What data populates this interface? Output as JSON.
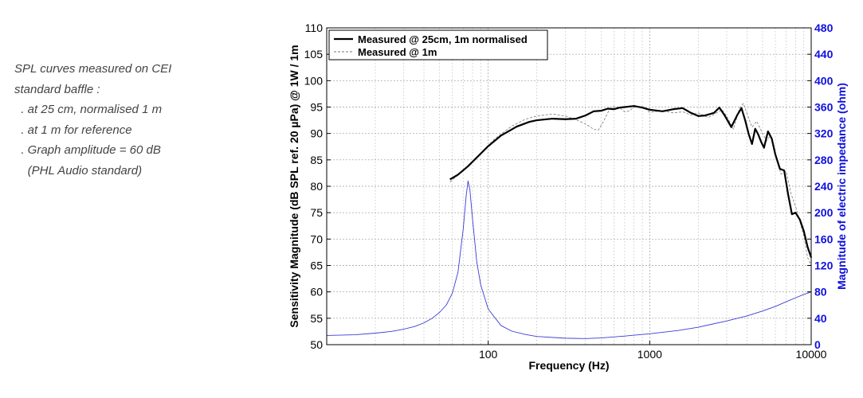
{
  "note": {
    "lines": [
      "SPL curves measured on CEI",
      "standard baffle :",
      "  . at 25 cm, normalised 1 m",
      "  . at 1 m for reference",
      "  . Graph amplitude = 60 dB",
      "    (PHL Audio standard)"
    ]
  },
  "chart_data": {
    "type": "line",
    "xlabel": "Frequency (Hz)",
    "ylabel": "Sensitivity Magnitude (dB SPL ref. 20 µPa) @ 1W / 1m",
    "ylabel_right": "Magnitude of electric impedance (ohm)",
    "xscale": "log",
    "xlim": [
      10,
      10000
    ],
    "ylim": [
      50,
      110
    ],
    "ylim_right": [
      0,
      480
    ],
    "x_tick_labels": [
      "100",
      "1000",
      "10000"
    ],
    "y_ticks": [
      50,
      55,
      60,
      65,
      70,
      75,
      80,
      85,
      90,
      95,
      100,
      105,
      110
    ],
    "y_ticks_right": [
      0,
      40,
      80,
      120,
      160,
      200,
      240,
      280,
      320,
      360,
      400,
      440,
      480
    ],
    "grid": true,
    "legend_position": "top-left",
    "colors": {
      "measured_25cm": "#000000",
      "measured_1m": "#777777",
      "impedance": "#3b3bd6",
      "right_axis": "#1010e0"
    },
    "series": [
      {
        "name": "Measured @ 25cm, 1m normalised",
        "axis": "left",
        "style": "solid",
        "points": [
          [
            58,
            81.3
          ],
          [
            65,
            82.2
          ],
          [
            75,
            83.8
          ],
          [
            90,
            86.2
          ],
          [
            100,
            87.6
          ],
          [
            120,
            89.6
          ],
          [
            150,
            91.3
          ],
          [
            180,
            92.2
          ],
          [
            200,
            92.5
          ],
          [
            250,
            92.8
          ],
          [
            300,
            92.7
          ],
          [
            350,
            92.8
          ],
          [
            400,
            93.4
          ],
          [
            450,
            94.2
          ],
          [
            500,
            94.3
          ],
          [
            550,
            94.7
          ],
          [
            600,
            94.6
          ],
          [
            650,
            94.9
          ],
          [
            700,
            95.0
          ],
          [
            800,
            95.2
          ],
          [
            900,
            94.9
          ],
          [
            1000,
            94.5
          ],
          [
            1200,
            94.2
          ],
          [
            1400,
            94.6
          ],
          [
            1600,
            94.8
          ],
          [
            1800,
            93.9
          ],
          [
            2000,
            93.3
          ],
          [
            2200,
            93.4
          ],
          [
            2500,
            93.9
          ],
          [
            2700,
            94.9
          ],
          [
            2900,
            93.5
          ],
          [
            3200,
            91.2
          ],
          [
            3500,
            93.6
          ],
          [
            3700,
            94.8
          ],
          [
            3900,
            92.5
          ],
          [
            4100,
            89.9
          ],
          [
            4300,
            88.0
          ],
          [
            4500,
            90.9
          ],
          [
            4700,
            89.8
          ],
          [
            4900,
            88.4
          ],
          [
            5100,
            87.3
          ],
          [
            5400,
            90.4
          ],
          [
            5700,
            89.0
          ],
          [
            6000,
            86.0
          ],
          [
            6400,
            83.3
          ],
          [
            6800,
            83.0
          ],
          [
            7200,
            78.4
          ],
          [
            7600,
            74.7
          ],
          [
            8000,
            75.0
          ],
          [
            8500,
            73.7
          ],
          [
            9000,
            71.5
          ],
          [
            9500,
            68.5
          ],
          [
            10000,
            66.5
          ]
        ]
      },
      {
        "name": "Measured @ 1m",
        "axis": "left",
        "style": "dashed",
        "points": [
          [
            58,
            80.8
          ],
          [
            70,
            83.0
          ],
          [
            90,
            86.3
          ],
          [
            110,
            89.0
          ],
          [
            140,
            91.4
          ],
          [
            170,
            92.7
          ],
          [
            200,
            93.3
          ],
          [
            250,
            93.7
          ],
          [
            300,
            93.3
          ],
          [
            350,
            92.6
          ],
          [
            400,
            91.8
          ],
          [
            450,
            90.8
          ],
          [
            480,
            90.6
          ],
          [
            520,
            92.4
          ],
          [
            560,
            94.4
          ],
          [
            600,
            95.1
          ],
          [
            650,
            94.9
          ],
          [
            700,
            94.1
          ],
          [
            750,
            94.3
          ],
          [
            800,
            95.0
          ],
          [
            900,
            95.1
          ],
          [
            1000,
            94.0
          ],
          [
            1200,
            94.3
          ],
          [
            1400,
            93.9
          ],
          [
            1600,
            94.1
          ],
          [
            1800,
            93.5
          ],
          [
            2000,
            93.9
          ],
          [
            2300,
            93.0
          ],
          [
            2500,
            93.6
          ],
          [
            2800,
            94.5
          ],
          [
            3000,
            93.3
          ],
          [
            3300,
            90.8
          ],
          [
            3600,
            94.8
          ],
          [
            3800,
            95.7
          ],
          [
            4000,
            93.8
          ],
          [
            4300,
            91.2
          ],
          [
            4600,
            92.3
          ],
          [
            5000,
            90.0
          ],
          [
            5300,
            88.6
          ],
          [
            5600,
            89.7
          ],
          [
            6000,
            86.1
          ],
          [
            6500,
            82.3
          ],
          [
            7000,
            82.8
          ],
          [
            7500,
            78.6
          ],
          [
            8000,
            76.2
          ],
          [
            9000,
            70.6
          ],
          [
            9500,
            66.5
          ],
          [
            10000,
            65.0
          ]
        ]
      },
      {
        "name": "",
        "axis": "right",
        "style": "solid",
        "points": [
          [
            10,
            14
          ],
          [
            15,
            15
          ],
          [
            20,
            17.5
          ],
          [
            25,
            20
          ],
          [
            30,
            23.5
          ],
          [
            35,
            27.5
          ],
          [
            40,
            33
          ],
          [
            45,
            40
          ],
          [
            50,
            49
          ],
          [
            55,
            60
          ],
          [
            60,
            78
          ],
          [
            65,
            110
          ],
          [
            70,
            175
          ],
          [
            73,
            225
          ],
          [
            75,
            248
          ],
          [
            77,
            235
          ],
          [
            80,
            190
          ],
          [
            85,
            125
          ],
          [
            90,
            90
          ],
          [
            100,
            54
          ],
          [
            120,
            29
          ],
          [
            140,
            20.5
          ],
          [
            170,
            15.5
          ],
          [
            200,
            12.5
          ],
          [
            300,
            9.8
          ],
          [
            400,
            9.3
          ],
          [
            500,
            10.2
          ],
          [
            700,
            13
          ],
          [
            1000,
            16.5
          ],
          [
            1500,
            21.5
          ],
          [
            2000,
            26.5
          ],
          [
            3000,
            36
          ],
          [
            4000,
            43.5
          ],
          [
            5000,
            51
          ],
          [
            6000,
            58
          ],
          [
            7000,
            65
          ],
          [
            8000,
            71
          ],
          [
            9000,
            76
          ],
          [
            10000,
            80
          ]
        ]
      }
    ]
  }
}
